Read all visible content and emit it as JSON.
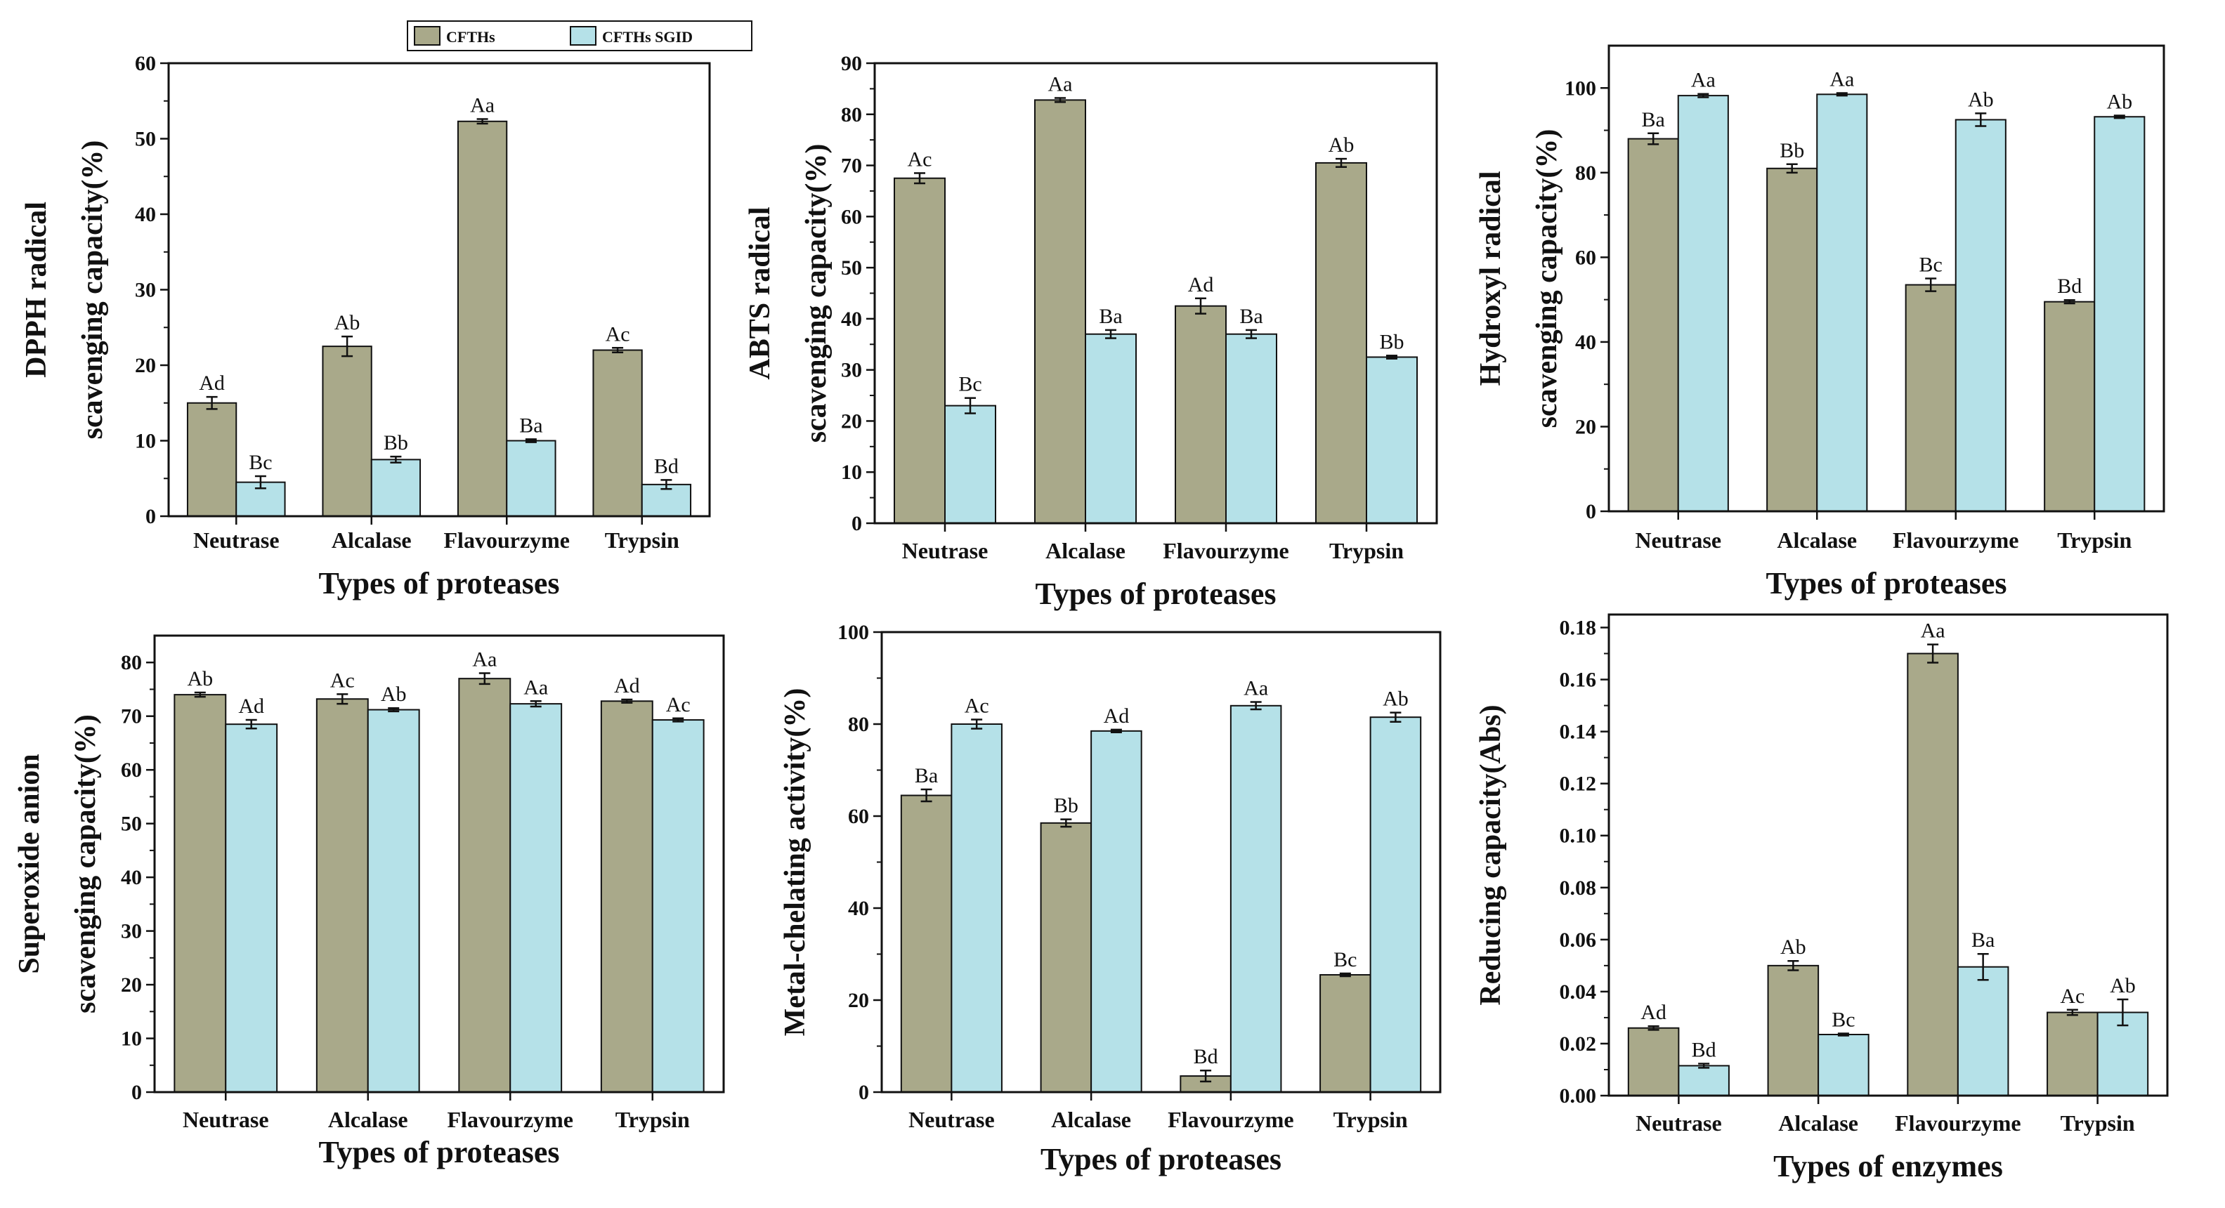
{
  "colors": {
    "CFTHs": "#a9a98a",
    "CFTHs SGID": "#b5e1e8",
    "frame": "#111111"
  },
  "legend": {
    "items": [
      "CFTHs",
      "CFTHs SGID"
    ]
  },
  "chart_data": [
    {
      "type": "bar",
      "id": "dpph",
      "categories": [
        "Neutrase",
        "Alcalase",
        "Flavourzyme",
        "Trypsin"
      ],
      "series": [
        {
          "name": "CFTHs",
          "values": [
            15,
            22.5,
            52.3,
            22
          ],
          "errors": [
            0.8,
            1.3,
            0.3,
            0.3
          ],
          "labels": [
            "Ad",
            "Ab",
            "Aa",
            "Ac"
          ]
        },
        {
          "name": "CFTHs SGID",
          "values": [
            4.5,
            7.5,
            10,
            4.2
          ],
          "errors": [
            0.8,
            0.4,
            0.2,
            0.6
          ],
          "labels": [
            "Bc",
            "Bb",
            "Ba",
            "Bd"
          ]
        }
      ],
      "ylim": [
        0,
        60
      ],
      "yticks": [
        0,
        10,
        20,
        30,
        40,
        50,
        60
      ],
      "ylabel_lines": [
        "DPPH radical",
        "scavenging capacity(%)"
      ],
      "xlabel": "Types of proteases"
    },
    {
      "type": "bar",
      "id": "abts",
      "categories": [
        "Neutrase",
        "Alcalase",
        "Flavourzyme",
        "Trypsin"
      ],
      "series": [
        {
          "name": "CFTHs",
          "values": [
            67.5,
            82.8,
            42.5,
            70.5
          ],
          "errors": [
            1.0,
            0.4,
            1.5,
            0.8
          ],
          "labels": [
            "Ac",
            "Aa",
            "Ad",
            "Ab"
          ]
        },
        {
          "name": "CFTHs SGID",
          "values": [
            23,
            37,
            37,
            32.5
          ],
          "errors": [
            1.5,
            0.8,
            0.8,
            0.3
          ],
          "labels": [
            "Bc",
            "Ba",
            "Ba",
            "Bb"
          ]
        }
      ],
      "ylim": [
        0,
        90
      ],
      "yticks": [
        0,
        10,
        20,
        30,
        40,
        50,
        60,
        70,
        80,
        90
      ],
      "ylabel_lines": [
        "ABTS radical",
        "scavenging capacity(%)"
      ],
      "xlabel": "Types of proteases"
    },
    {
      "type": "bar",
      "id": "hydroxyl",
      "categories": [
        "Neutrase",
        "Alcalase",
        "Flavourzyme",
        "Trypsin"
      ],
      "series": [
        {
          "name": "CFTHs",
          "values": [
            88,
            81,
            53.5,
            49.5
          ],
          "errors": [
            1.3,
            1.0,
            1.5,
            0.4
          ],
          "labels": [
            "Ba",
            "Bb",
            "Bc",
            "Bd"
          ]
        },
        {
          "name": "CFTHs SGID",
          "values": [
            98.2,
            98.5,
            92.5,
            93.2
          ],
          "errors": [
            0.4,
            0.3,
            1.5,
            0.3
          ],
          "labels": [
            "Aa",
            "Aa",
            "Ab",
            "Ab"
          ]
        }
      ],
      "ylim": [
        0,
        110
      ],
      "yticks": [
        0,
        20,
        40,
        60,
        80,
        100
      ],
      "ylabel_lines": [
        "Hydroxyl radical",
        "scavenging capacity(%)"
      ],
      "xlabel": "Types of proteases"
    },
    {
      "type": "bar",
      "id": "superoxide",
      "categories": [
        "Neutrase",
        "Alcalase",
        "Flavourzyme",
        "Trypsin"
      ],
      "series": [
        {
          "name": "CFTHs",
          "values": [
            74,
            73.2,
            77,
            72.8
          ],
          "errors": [
            0.4,
            0.9,
            1.0,
            0.3
          ],
          "labels": [
            "Ab",
            "Ac",
            "Aa",
            "Ad"
          ]
        },
        {
          "name": "CFTHs SGID",
          "values": [
            68.5,
            71.2,
            72.3,
            69.3
          ],
          "errors": [
            0.8,
            0.3,
            0.5,
            0.3
          ],
          "labels": [
            "Ad",
            "Ab",
            "Aa",
            "Ac"
          ]
        }
      ],
      "ylim": [
        0,
        85
      ],
      "yticks": [
        0,
        10,
        20,
        30,
        40,
        50,
        60,
        70,
        80
      ],
      "ylabel_lines": [
        "Superoxide anion",
        "scavenging capacity(%)"
      ],
      "xlabel": "Types of proteases"
    },
    {
      "type": "bar",
      "id": "metal",
      "categories": [
        "Neutrase",
        "Alcalase",
        "Flavourzyme",
        "Trypsin"
      ],
      "series": [
        {
          "name": "CFTHs",
          "values": [
            64.5,
            58.5,
            3.5,
            25.5
          ],
          "errors": [
            1.3,
            0.8,
            1.2,
            0.3
          ],
          "labels": [
            "Ba",
            "Bb",
            "Bd",
            "Bc"
          ]
        },
        {
          "name": "CFTHs SGID",
          "values": [
            80,
            78.5,
            84,
            81.5
          ],
          "errors": [
            1.0,
            0.3,
            0.8,
            1.0
          ],
          "labels": [
            "Ac",
            "Ad",
            "Aa",
            "Ab"
          ]
        }
      ],
      "ylim": [
        0,
        100
      ],
      "yticks": [
        0,
        20,
        40,
        60,
        80,
        100
      ],
      "ylabel_lines": [
        "Metal-chelating activity(%)"
      ],
      "xlabel": "Types of proteases"
    },
    {
      "type": "bar",
      "id": "reducing",
      "categories": [
        "Neutrase",
        "Alcalase",
        "Flavourzyme",
        "Trypsin"
      ],
      "series": [
        {
          "name": "CFTHs",
          "values": [
            0.026,
            0.05,
            0.17,
            0.032
          ],
          "errors": [
            0.0007,
            0.0018,
            0.0035,
            0.001
          ],
          "labels": [
            "Ad",
            "Ab",
            "Aa",
            "Ac"
          ]
        },
        {
          "name": "CFTHs SGID",
          "values": [
            0.0115,
            0.0235,
            0.0495,
            0.032
          ],
          "errors": [
            0.0008,
            0.0004,
            0.005,
            0.005
          ],
          "labels": [
            "Bd",
            "Bc",
            "Ba",
            "Ab"
          ]
        }
      ],
      "ylim": [
        0,
        0.185
      ],
      "yticks": [
        0,
        0.02,
        0.04,
        0.06,
        0.08,
        0.1,
        0.12,
        0.14,
        0.16,
        0.18
      ],
      "ytick_labels": [
        "0.00",
        "0.02",
        "0.04",
        "0.06",
        "0.08",
        "0.10",
        "0.12",
        "0.14",
        "0.16",
        "0.18"
      ],
      "ylabel_lines": [
        "Reducing capacity(Abs)"
      ],
      "xlabel": "Types of enzymes"
    }
  ]
}
